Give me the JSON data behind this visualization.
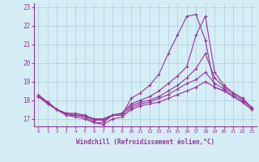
{
  "xlabel": "Windchill (Refroidissement éolien,°C)",
  "hours": [
    0,
    1,
    2,
    3,
    4,
    5,
    6,
    7,
    8,
    9,
    10,
    11,
    12,
    13,
    14,
    15,
    16,
    17,
    18,
    19,
    20,
    21,
    22,
    23
  ],
  "line1": [
    18.3,
    17.9,
    17.5,
    17.2,
    17.2,
    17.1,
    16.8,
    16.8,
    17.2,
    17.2,
    18.1,
    18.4,
    18.8,
    19.4,
    20.5,
    21.5,
    22.5,
    22.6,
    21.2,
    18.7,
    18.5,
    18.2,
    17.9,
    17.5
  ],
  "line2": [
    18.2,
    17.9,
    17.5,
    17.3,
    17.3,
    17.2,
    16.9,
    17.0,
    17.2,
    17.3,
    17.8,
    18.0,
    18.2,
    18.5,
    18.9,
    19.3,
    19.8,
    21.5,
    22.5,
    19.5,
    18.8,
    18.4,
    18.1,
    17.6
  ],
  "line3": [
    18.2,
    17.9,
    17.5,
    17.3,
    17.2,
    17.2,
    17.0,
    17.0,
    17.2,
    17.3,
    17.7,
    17.9,
    18.0,
    18.2,
    18.5,
    18.8,
    19.2,
    19.7,
    20.5,
    19.2,
    18.7,
    18.4,
    18.1,
    17.6
  ],
  "line4": [
    18.2,
    17.9,
    17.5,
    17.3,
    17.2,
    17.1,
    17.0,
    16.9,
    17.2,
    17.2,
    17.6,
    17.8,
    17.9,
    18.1,
    18.3,
    18.6,
    18.9,
    19.1,
    19.5,
    18.9,
    18.6,
    18.3,
    18.0,
    17.6
  ],
  "line5": [
    18.2,
    17.8,
    17.5,
    17.2,
    17.1,
    17.0,
    16.8,
    16.7,
    17.0,
    17.1,
    17.5,
    17.7,
    17.8,
    17.9,
    18.1,
    18.3,
    18.5,
    18.7,
    19.0,
    18.7,
    18.5,
    18.2,
    17.9,
    17.5
  ],
  "line_color": "#993399",
  "bg_color": "#d5eef5",
  "grid_color": "#aaccdd",
  "ylim": [
    16.6,
    23.2
  ],
  "yticks": [
    17,
    18,
    19,
    20,
    21,
    22,
    23
  ],
  "marker": "+",
  "markersize": 3.0,
  "linewidth": 0.8
}
